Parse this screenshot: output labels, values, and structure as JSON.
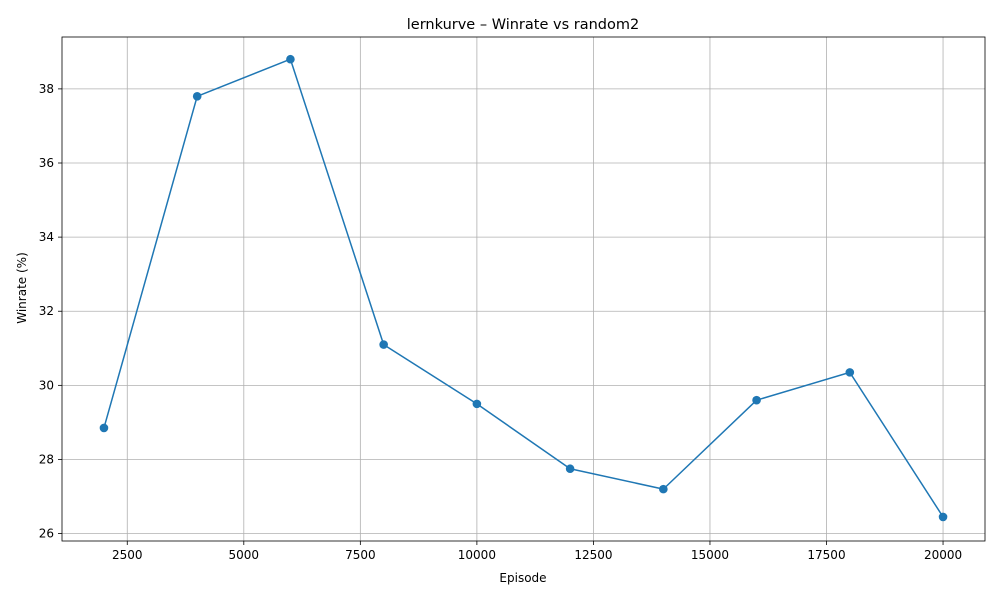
{
  "chart_data": {
    "type": "line",
    "title": "lernkurve – Winrate vs random2",
    "xlabel": "Episode",
    "ylabel": "Winrate (%)",
    "xlim": [
      1100,
      20900
    ],
    "ylim": [
      25.8,
      39.4
    ],
    "xticks": [
      2500,
      5000,
      7500,
      10000,
      12500,
      15000,
      17500,
      20000
    ],
    "xtick_labels": [
      "2500",
      "5000",
      "7500",
      "10000",
      "12500",
      "15000",
      "17500",
      "20000"
    ],
    "yticks": [
      26,
      28,
      30,
      32,
      34,
      36,
      38
    ],
    "ytick_labels": [
      "26",
      "28",
      "30",
      "32",
      "34",
      "36",
      "38"
    ],
    "grid": true,
    "series": [
      {
        "color": "#1f77b4",
        "marker": "circle",
        "x": [
          2000,
          4000,
          6000,
          8000,
          10000,
          12000,
          14000,
          16000,
          18000,
          20000
        ],
        "y": [
          28.85,
          37.8,
          38.8,
          31.1,
          29.5,
          27.75,
          27.2,
          29.6,
          30.35,
          26.45
        ]
      }
    ]
  }
}
